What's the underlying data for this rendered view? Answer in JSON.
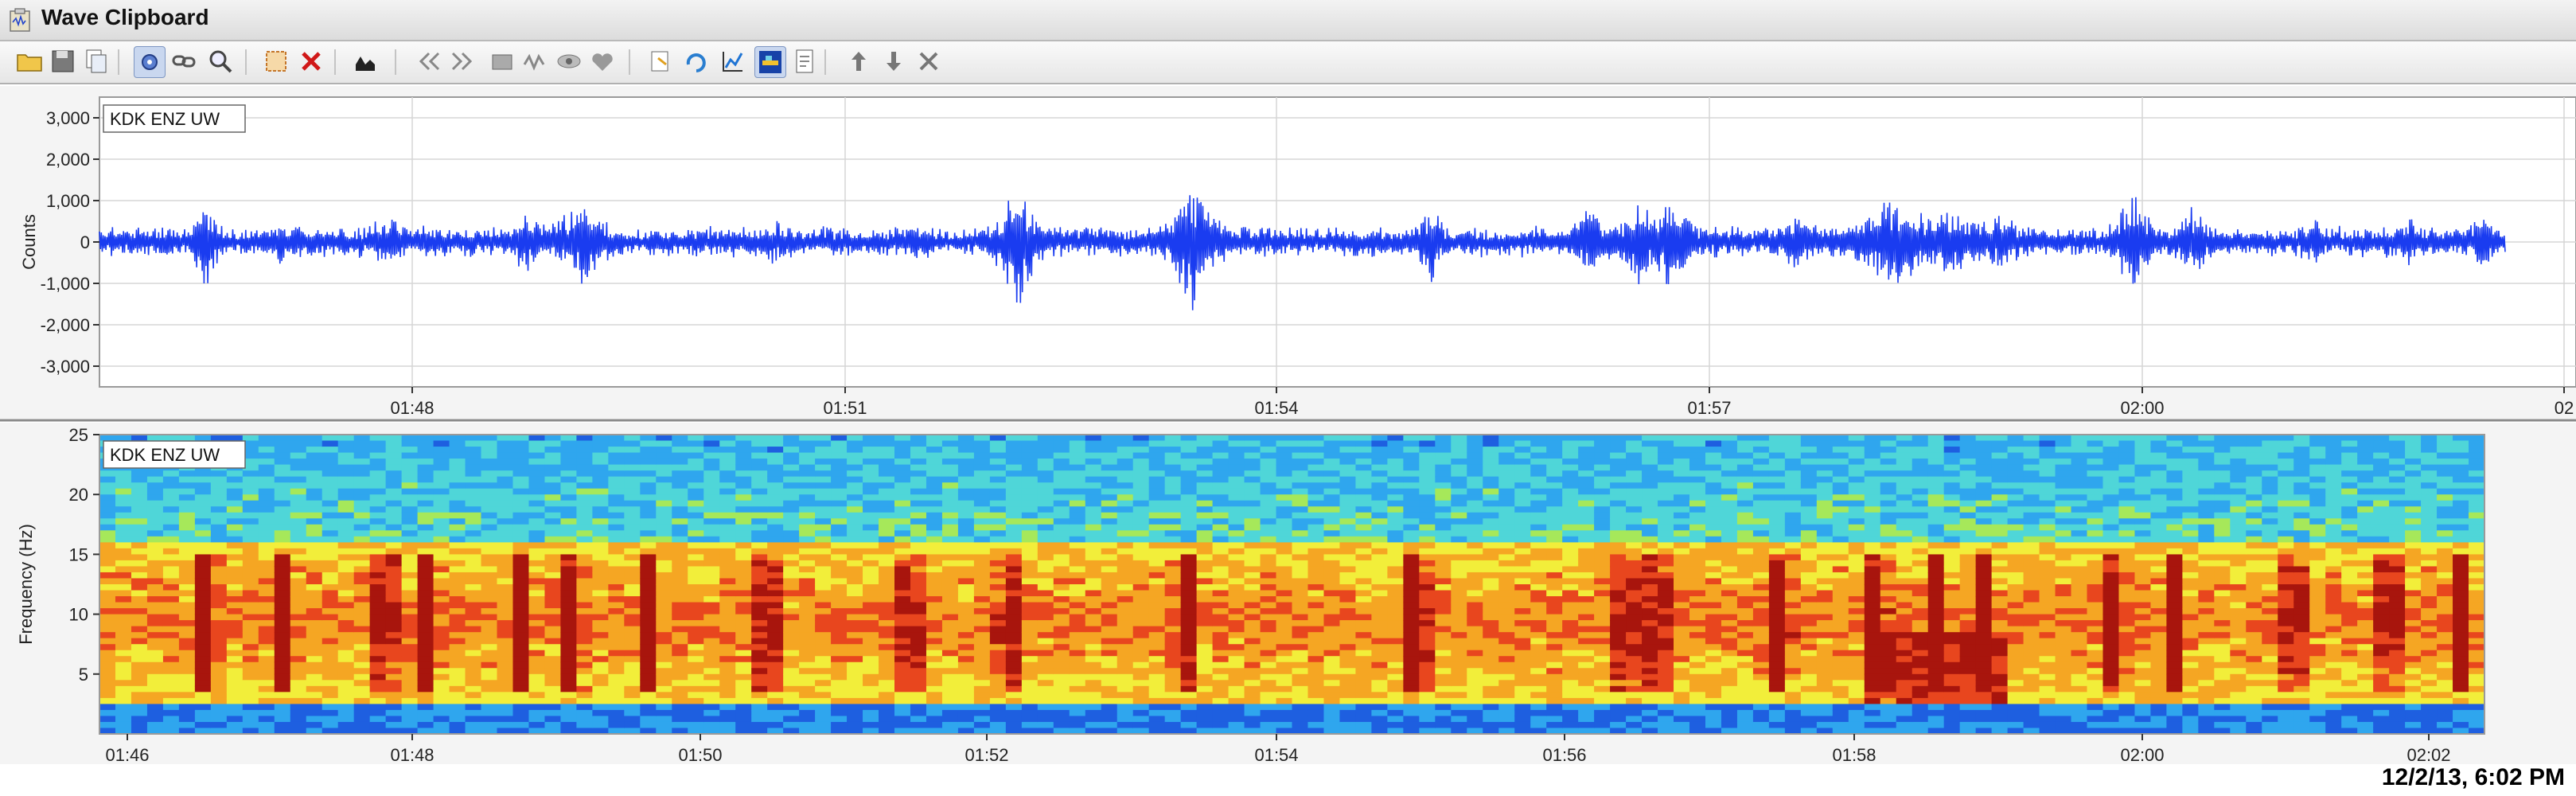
{
  "window": {
    "title": "Wave Clipboard"
  },
  "toolbar": {
    "buttons": [
      {
        "icon": "open-folder-icon"
      },
      {
        "icon": "save-icon"
      },
      {
        "icon": "copy-icon"
      },
      {
        "icon": "settings-icon",
        "active": true
      },
      {
        "icon": "link-icon"
      },
      {
        "icon": "zoom-icon"
      },
      {
        "icon": "clear-icon"
      },
      {
        "icon": "remove-icon"
      },
      {
        "icon": "clip-icon"
      },
      {
        "icon": "back-icon"
      },
      {
        "icon": "forward-icon"
      },
      {
        "icon": "gaps-icon"
      },
      {
        "icon": "wave-shape-icon"
      },
      {
        "icon": "eye-icon"
      },
      {
        "icon": "heart-icon"
      },
      {
        "icon": "export-icon"
      },
      {
        "icon": "rotate-icon"
      },
      {
        "icon": "chart-icon"
      },
      {
        "icon": "spectrogram-icon",
        "active": true
      },
      {
        "icon": "document-icon"
      },
      {
        "icon": "up-arrow-icon"
      },
      {
        "icon": "down-arrow-icon"
      },
      {
        "icon": "close-icon"
      }
    ]
  },
  "status": {
    "datetime": "12/2/13, 6:02 PM"
  },
  "colors": {
    "wave": "#1a3cf0",
    "grid": "#d6d6d6",
    "axis": "#333333"
  },
  "chart_data": [
    {
      "type": "line",
      "station": "KDK ENZ UW",
      "ylabel": "Counts",
      "yticks": [
        "3,000",
        "2,000",
        "1,000",
        "0",
        "-1,000",
        "-2,000",
        "-3,000"
      ],
      "ylim": [
        -3500,
        3500
      ],
      "xticks": [
        "01:48",
        "01:51",
        "01:54",
        "01:57",
        "02:00",
        "02"
      ],
      "noise_amplitude": 400,
      "events": [
        {
          "t": 0.044,
          "amp": 1450,
          "dur": 0.006
        },
        {
          "t": 0.076,
          "amp": 600,
          "dur": 0.01
        },
        {
          "t": 0.12,
          "amp": 800,
          "dur": 0.012
        },
        {
          "t": 0.136,
          "amp": 500,
          "dur": 0.008
        },
        {
          "t": 0.178,
          "amp": 950,
          "dur": 0.01
        },
        {
          "t": 0.2,
          "amp": 1250,
          "dur": 0.012
        },
        {
          "t": 0.28,
          "amp": 650,
          "dur": 0.012
        },
        {
          "t": 0.34,
          "amp": 600,
          "dur": 0.01
        },
        {
          "t": 0.382,
          "amp": 2100,
          "dur": 0.008
        },
        {
          "t": 0.42,
          "amp": 500,
          "dur": 0.01
        },
        {
          "t": 0.455,
          "amp": 1900,
          "dur": 0.01
        },
        {
          "t": 0.55,
          "amp": 600,
          "dur": 0.012
        },
        {
          "t": 0.553,
          "amp": 1250,
          "dur": 0.006
        },
        {
          "t": 0.62,
          "amp": 1050,
          "dur": 0.01
        },
        {
          "t": 0.64,
          "amp": 1350,
          "dur": 0.01
        },
        {
          "t": 0.653,
          "amp": 1800,
          "dur": 0.008
        },
        {
          "t": 0.705,
          "amp": 900,
          "dur": 0.012
        },
        {
          "t": 0.745,
          "amp": 1250,
          "dur": 0.022
        },
        {
          "t": 0.77,
          "amp": 1000,
          "dur": 0.02
        },
        {
          "t": 0.79,
          "amp": 800,
          "dur": 0.018
        },
        {
          "t": 0.845,
          "amp": 1600,
          "dur": 0.008
        },
        {
          "t": 0.87,
          "amp": 900,
          "dur": 0.012
        },
        {
          "t": 0.92,
          "amp": 700,
          "dur": 0.01
        },
        {
          "t": 0.96,
          "amp": 650,
          "dur": 0.01
        },
        {
          "t": 0.99,
          "amp": 900,
          "dur": 0.008
        }
      ]
    },
    {
      "type": "heatmap",
      "station": "KDK ENZ UW",
      "ylabel": "Frequency (Hz)",
      "yticks": [
        "25",
        "20",
        "15",
        "10",
        "5"
      ],
      "ylim": [
        0,
        25
      ],
      "xticks": [
        "01:46",
        "01:48",
        "01:50",
        "01:52",
        "01:54",
        "01:56",
        "01:58",
        "02:00",
        "02:02"
      ],
      "colormap": [
        "#0b1f9e",
        "#1e5fe0",
        "#2fa6ee",
        "#4fd6d8",
        "#a6e85a",
        "#f2ee3a",
        "#f5a623",
        "#e8461e",
        "#a8150d"
      ],
      "hot_columns": [
        0.045,
        0.077,
        0.12,
        0.137,
        0.176,
        0.198,
        0.23,
        0.28,
        0.34,
        0.381,
        0.455,
        0.55,
        0.553,
        0.64,
        0.653,
        0.705,
        0.745,
        0.77,
        0.79,
        0.845,
        0.87,
        0.92,
        0.96,
        0.99
      ]
    }
  ]
}
